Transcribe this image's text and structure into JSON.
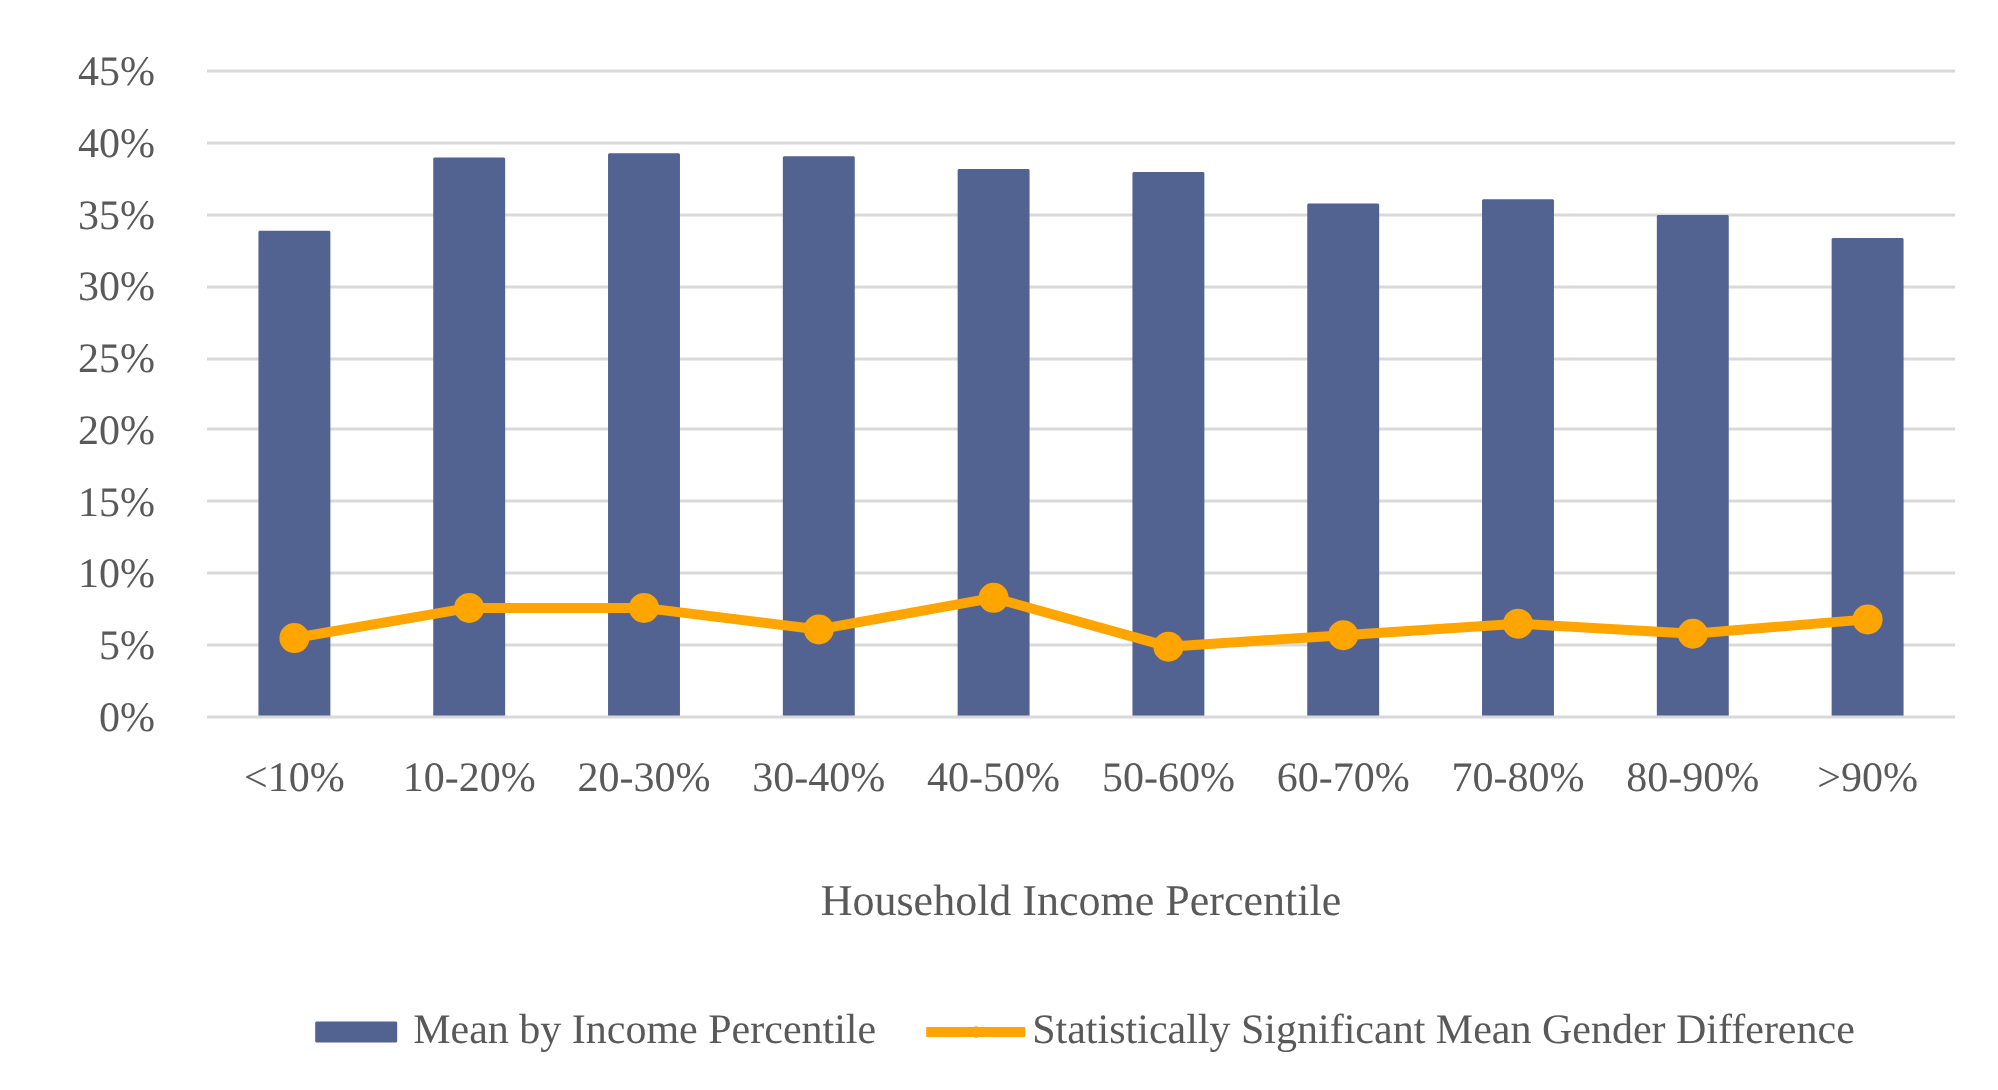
{
  "chart_data": {
    "type": "bar",
    "xlabel": "Household Income Percentile",
    "categories": [
      "<10%",
      "10-20%",
      "20-30%",
      "30-40%",
      "40-50%",
      "50-60%",
      "60-70%",
      "70-80%",
      "80-90%",
      ">90%"
    ],
    "series": [
      {
        "name": "Mean by Income Percentile",
        "color": "#536391",
        "values": [
          33.8,
          38.9,
          39.2,
          39.0,
          38.1,
          37.9,
          35.7,
          36.0,
          34.9,
          33.3
        ]
      },
      {
        "name": "Statistically Significant Mean Gender Difference",
        "type": "line",
        "color": "#ffa500",
        "marker": "circle",
        "values": [
          5.5,
          7.6,
          7.6,
          6.1,
          8.3,
          4.9,
          5.7,
          6.5,
          5.8,
          6.8
        ]
      }
    ],
    "ylim": [
      0,
      45
    ],
    "yticks": [
      {
        "value": 0,
        "label": "0%"
      },
      {
        "value": 5,
        "label": "5%"
      },
      {
        "value": 10,
        "label": "10%"
      },
      {
        "value": 15,
        "label": "15%"
      },
      {
        "value": 20,
        "label": "20%"
      },
      {
        "value": 25,
        "label": "25%"
      },
      {
        "value": 30,
        "label": "30%"
      },
      {
        "value": 35,
        "label": "35%"
      },
      {
        "value": 40,
        "label": "40%"
      },
      {
        "value": 45,
        "label": "45%"
      }
    ],
    "grid": "y",
    "legend": "bottom"
  }
}
